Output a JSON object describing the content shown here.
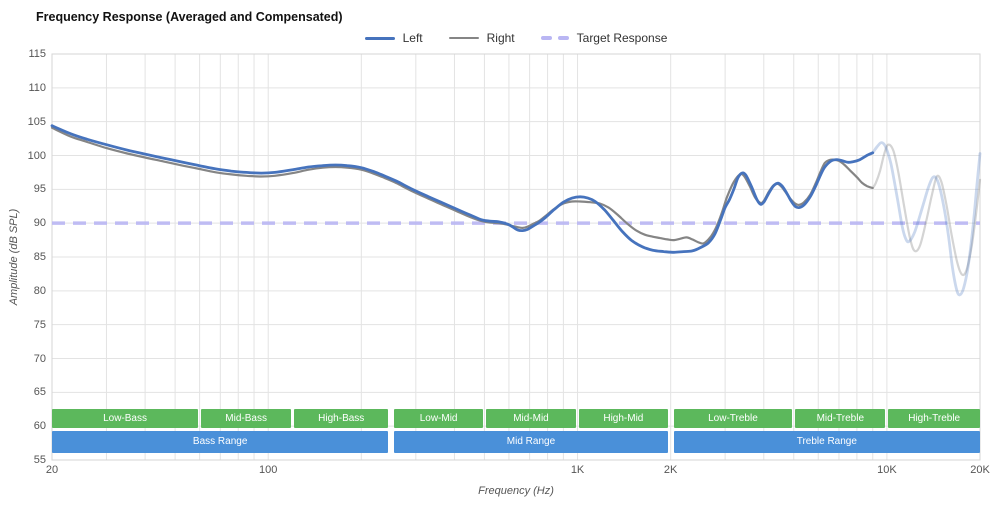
{
  "title": "Frequency Response (Averaged and Compensated)",
  "legend": {
    "items": [
      {
        "label": "Left",
        "color": "#4673bd",
        "style": "solid"
      },
      {
        "label": "Right",
        "color": "#858585",
        "style": "solid"
      },
      {
        "label": "Target Response",
        "color": "#b9b6f3",
        "style": "dashed"
      }
    ]
  },
  "axes": {
    "x": {
      "label": "Frequency (Hz)",
      "scale": "log",
      "min": 20,
      "max": 20000,
      "tick_labels": [
        {
          "f": 20,
          "label": "20"
        },
        {
          "f": 100,
          "label": "100"
        },
        {
          "f": 1000,
          "label": "1K"
        },
        {
          "f": 2000,
          "label": "2K"
        },
        {
          "f": 10000,
          "label": "10K"
        },
        {
          "f": 20000,
          "label": "20K"
        }
      ],
      "gridlines": [
        20,
        30,
        40,
        50,
        60,
        70,
        80,
        90,
        100,
        200,
        300,
        400,
        500,
        600,
        700,
        800,
        900,
        1000,
        2000,
        3000,
        4000,
        5000,
        6000,
        7000,
        8000,
        9000,
        10000,
        20000
      ]
    },
    "y": {
      "label": "Amplitude (dB SPL)",
      "min": 55,
      "max": 115,
      "step": 5,
      "tick_labels": [
        "115",
        "110",
        "105",
        "100",
        "95",
        "90",
        "85",
        "80",
        "75",
        "70",
        "65",
        "60",
        "55"
      ]
    }
  },
  "bands": {
    "colors": {
      "sub": "#5cb85c",
      "range": "#4a90d9",
      "text": "#ffffff"
    },
    "group_edges": [
      250,
      2000
    ],
    "sub": [
      {
        "label": "Low-Bass",
        "from": 20,
        "to": 60
      },
      {
        "label": "Mid-Bass",
        "from": 60,
        "to": 120
      },
      {
        "label": "High-Bass",
        "from": 120,
        "to": 250
      },
      {
        "label": "Low-Mid",
        "from": 250,
        "to": 500
      },
      {
        "label": "Mid-Mid",
        "from": 500,
        "to": 1000
      },
      {
        "label": "High-Mid",
        "from": 1000,
        "to": 2000
      },
      {
        "label": "Low-Treble",
        "from": 2000,
        "to": 5000
      },
      {
        "label": "Mid-Treble",
        "from": 5000,
        "to": 10000
      },
      {
        "label": "High-Treble",
        "from": 10000,
        "to": 20000
      }
    ],
    "ranges": [
      {
        "label": "Bass Range",
        "from": 20,
        "to": 250
      },
      {
        "label": "Mid Range",
        "from": 250,
        "to": 2000
      },
      {
        "label": "Treble Range",
        "from": 2000,
        "to": 20000
      }
    ]
  },
  "chart_data": {
    "type": "line",
    "title": "Frequency Response (Averaged and Compensated)",
    "xlabel": "Frequency (Hz)",
    "ylabel": "Amplitude (dB SPL)",
    "xlim": [
      20,
      20000
    ],
    "ylim": [
      55,
      115
    ],
    "x_scale": "log",
    "grid": true,
    "legend_position": "top-center",
    "target_response_db": 90,
    "fade_above_hz": 9000,
    "series": [
      {
        "name": "Left",
        "color": "#4673bd",
        "width": 2.8,
        "opacity": 1,
        "style": "solid",
        "points": [
          [
            20,
            104.4
          ],
          [
            23,
            103.2
          ],
          [
            26,
            102.4
          ],
          [
            30,
            101.6
          ],
          [
            35,
            100.8
          ],
          [
            40,
            100.2
          ],
          [
            46,
            99.6
          ],
          [
            53,
            99.0
          ],
          [
            60,
            98.5
          ],
          [
            68,
            98.0
          ],
          [
            76,
            97.7
          ],
          [
            85,
            97.5
          ],
          [
            95,
            97.4
          ],
          [
            105,
            97.5
          ],
          [
            120,
            97.9
          ],
          [
            135,
            98.3
          ],
          [
            150,
            98.5
          ],
          [
            165,
            98.6
          ],
          [
            180,
            98.5
          ],
          [
            200,
            98.2
          ],
          [
            220,
            97.6
          ],
          [
            240,
            96.9
          ],
          [
            260,
            96.2
          ],
          [
            290,
            95.1
          ],
          [
            330,
            93.9
          ],
          [
            370,
            92.9
          ],
          [
            410,
            92.0
          ],
          [
            450,
            91.2
          ],
          [
            490,
            90.5
          ],
          [
            520,
            90.3
          ],
          [
            555,
            90.2
          ],
          [
            590,
            89.9
          ],
          [
            615,
            89.5
          ],
          [
            640,
            89.0
          ],
          [
            665,
            88.9
          ],
          [
            690,
            89.1
          ],
          [
            720,
            89.6
          ],
          [
            750,
            90.1
          ],
          [
            790,
            90.9
          ],
          [
            840,
            92.0
          ],
          [
            900,
            93.1
          ],
          [
            960,
            93.7
          ],
          [
            1020,
            93.9
          ],
          [
            1080,
            93.7
          ],
          [
            1140,
            93.2
          ],
          [
            1220,
            92.0
          ],
          [
            1300,
            90.5
          ],
          [
            1400,
            88.7
          ],
          [
            1500,
            87.4
          ],
          [
            1620,
            86.5
          ],
          [
            1750,
            86.0
          ],
          [
            1900,
            85.8
          ],
          [
            2050,
            85.7
          ],
          [
            2200,
            85.8
          ],
          [
            2350,
            85.9
          ],
          [
            2500,
            86.4
          ],
          [
            2650,
            87.1
          ],
          [
            2780,
            88.4
          ],
          [
            2900,
            90.5
          ],
          [
            3000,
            92.3
          ],
          [
            3100,
            93.5
          ],
          [
            3200,
            95.0
          ],
          [
            3300,
            96.7
          ],
          [
            3400,
            97.4
          ],
          [
            3500,
            97.1
          ],
          [
            3650,
            95.4
          ],
          [
            3800,
            93.5
          ],
          [
            3900,
            92.8
          ],
          [
            4000,
            93.1
          ],
          [
            4150,
            94.4
          ],
          [
            4300,
            95.5
          ],
          [
            4450,
            95.9
          ],
          [
            4600,
            95.4
          ],
          [
            4750,
            94.4
          ],
          [
            4900,
            93.3
          ],
          [
            5050,
            92.5
          ],
          [
            5200,
            92.3
          ],
          [
            5400,
            92.7
          ],
          [
            5650,
            93.9
          ],
          [
            5900,
            95.6
          ],
          [
            6100,
            97.1
          ],
          [
            6300,
            98.3
          ],
          [
            6600,
            99.2
          ],
          [
            6900,
            99.4
          ],
          [
            7200,
            99.2
          ],
          [
            7500,
            99.0
          ],
          [
            7800,
            99.1
          ],
          [
            8100,
            99.3
          ],
          [
            8400,
            99.7
          ],
          [
            8700,
            100.1
          ],
          [
            9000,
            100.4
          ]
        ]
      },
      {
        "name": "Right",
        "color": "#858585",
        "width": 2.2,
        "opacity": 1,
        "style": "solid",
        "points": [
          [
            20,
            104.1
          ],
          [
            23,
            102.8
          ],
          [
            26,
            102.0
          ],
          [
            30,
            101.1
          ],
          [
            35,
            100.3
          ],
          [
            40,
            99.7
          ],
          [
            46,
            99.1
          ],
          [
            53,
            98.5
          ],
          [
            60,
            98.0
          ],
          [
            68,
            97.5
          ],
          [
            76,
            97.2
          ],
          [
            85,
            97.0
          ],
          [
            95,
            96.9
          ],
          [
            105,
            97.0
          ],
          [
            120,
            97.4
          ],
          [
            135,
            97.9
          ],
          [
            150,
            98.2
          ],
          [
            165,
            98.3
          ],
          [
            180,
            98.2
          ],
          [
            200,
            97.9
          ],
          [
            220,
            97.3
          ],
          [
            240,
            96.6
          ],
          [
            260,
            95.9
          ],
          [
            290,
            94.8
          ],
          [
            330,
            93.6
          ],
          [
            370,
            92.6
          ],
          [
            410,
            91.7
          ],
          [
            450,
            90.9
          ],
          [
            490,
            90.3
          ],
          [
            520,
            90.1
          ],
          [
            555,
            90.0
          ],
          [
            590,
            89.8
          ],
          [
            615,
            89.6
          ],
          [
            640,
            89.4
          ],
          [
            665,
            89.3
          ],
          [
            690,
            89.5
          ],
          [
            720,
            89.9
          ],
          [
            750,
            90.3
          ],
          [
            790,
            91.1
          ],
          [
            840,
            92.1
          ],
          [
            900,
            92.9
          ],
          [
            960,
            93.2
          ],
          [
            1020,
            93.2
          ],
          [
            1100,
            93.1
          ],
          [
            1180,
            92.9
          ],
          [
            1260,
            92.3
          ],
          [
            1350,
            91.2
          ],
          [
            1450,
            89.9
          ],
          [
            1550,
            88.9
          ],
          [
            1650,
            88.3
          ],
          [
            1750,
            88.0
          ],
          [
            1850,
            87.8
          ],
          [
            1950,
            87.6
          ],
          [
            2050,
            87.5
          ],
          [
            2150,
            87.7
          ],
          [
            2250,
            87.9
          ],
          [
            2350,
            87.6
          ],
          [
            2450,
            87.2
          ],
          [
            2550,
            87.0
          ],
          [
            2650,
            87.6
          ],
          [
            2750,
            88.6
          ],
          [
            2850,
            90.1
          ],
          [
            2950,
            92.0
          ],
          [
            3050,
            94.0
          ],
          [
            3200,
            96.1
          ],
          [
            3350,
            97.2
          ],
          [
            3450,
            97.0
          ],
          [
            3600,
            95.5
          ],
          [
            3750,
            93.8
          ],
          [
            3900,
            93.0
          ],
          [
            4000,
            93.3
          ],
          [
            4150,
            94.6
          ],
          [
            4300,
            95.6
          ],
          [
            4450,
            95.8
          ],
          [
            4600,
            95.2
          ],
          [
            4750,
            94.3
          ],
          [
            4900,
            93.5
          ],
          [
            5050,
            92.9
          ],
          [
            5200,
            92.7
          ],
          [
            5400,
            93.1
          ],
          [
            5650,
            94.2
          ],
          [
            5900,
            96.0
          ],
          [
            6100,
            97.6
          ],
          [
            6300,
            98.9
          ],
          [
            6500,
            99.3
          ],
          [
            6700,
            99.4
          ],
          [
            7000,
            99.2
          ],
          [
            7300,
            98.6
          ],
          [
            7600,
            97.8
          ],
          [
            8000,
            96.8
          ],
          [
            8300,
            96.0
          ],
          [
            8600,
            95.5
          ],
          [
            9000,
            95.2
          ]
        ]
      },
      {
        "name": "Left (faded above 9 kHz)",
        "color": "#4673bd",
        "width": 2.8,
        "opacity": 0.28,
        "style": "solid",
        "points": [
          [
            9000,
            100.4
          ],
          [
            9300,
            101.3
          ],
          [
            9600,
            101.9
          ],
          [
            9900,
            101.3
          ],
          [
            10300,
            98.8
          ],
          [
            10800,
            93.8
          ],
          [
            11200,
            89.6
          ],
          [
            11500,
            87.7
          ],
          [
            11800,
            87.3
          ],
          [
            12300,
            88.7
          ],
          [
            13000,
            92.2
          ],
          [
            13600,
            95.2
          ],
          [
            14100,
            96.8
          ],
          [
            14600,
            96.2
          ],
          [
            15200,
            93.0
          ],
          [
            15800,
            88.3
          ],
          [
            16300,
            83.4
          ],
          [
            16800,
            80.2
          ],
          [
            17200,
            79.4
          ],
          [
            17700,
            80.4
          ],
          [
            18300,
            83.6
          ],
          [
            19000,
            89.6
          ],
          [
            19600,
            96.2
          ],
          [
            20000,
            100.3
          ]
        ]
      },
      {
        "name": "Right (faded above 9 kHz)",
        "color": "#858585",
        "width": 2.2,
        "opacity": 0.35,
        "style": "solid",
        "points": [
          [
            9000,
            95.2
          ],
          [
            9200,
            95.9
          ],
          [
            9500,
            97.7
          ],
          [
            9800,
            100.2
          ],
          [
            10100,
            101.6
          ],
          [
            10500,
            100.7
          ],
          [
            10900,
            97.4
          ],
          [
            11400,
            92.2
          ],
          [
            11900,
            87.6
          ],
          [
            12300,
            85.9
          ],
          [
            12800,
            86.7
          ],
          [
            13400,
            90.3
          ],
          [
            14000,
            94.3
          ],
          [
            14500,
            96.9
          ],
          [
            15000,
            96.1
          ],
          [
            15600,
            92.6
          ],
          [
            16200,
            88.2
          ],
          [
            16900,
            84.1
          ],
          [
            17500,
            82.4
          ],
          [
            18100,
            83.1
          ],
          [
            18800,
            86.6
          ],
          [
            19400,
            91.2
          ],
          [
            20000,
            96.4
          ]
        ]
      },
      {
        "name": "Target Response",
        "color": "#b9b6f3",
        "width": 3.5,
        "opacity": 0.9,
        "style": "dashed",
        "points": [
          [
            20,
            90
          ],
          [
            20000,
            90
          ]
        ]
      }
    ]
  }
}
